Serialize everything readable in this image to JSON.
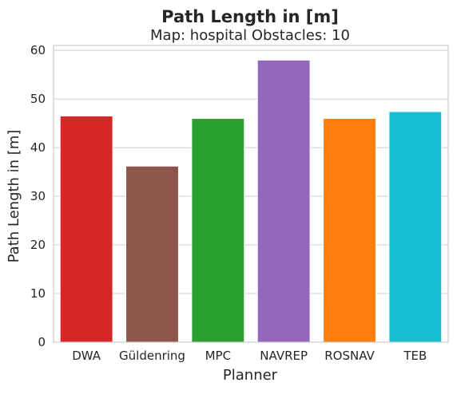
{
  "chart_data": {
    "type": "bar",
    "suptitle": "Path Length in [m]",
    "title": "Map: hospital Obstacles: 10",
    "xlabel": "Planner",
    "ylabel": "Path Length in [m]",
    "categories": [
      "DWA",
      "Güldenring",
      "MPC",
      "NAVREP",
      "ROSNAV",
      "TEB"
    ],
    "values": [
      46.5,
      36.2,
      46.0,
      58.0,
      46.0,
      47.4
    ],
    "colors": [
      "#d62728",
      "#8c564b",
      "#2ca02c",
      "#9467bd",
      "#ff7f0e",
      "#17becf"
    ],
    "ylim": [
      0,
      61
    ],
    "yticks": [
      0,
      10,
      20,
      30,
      40,
      50,
      60
    ],
    "grid": true,
    "legend": "none"
  }
}
